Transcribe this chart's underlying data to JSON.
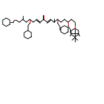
{
  "bg": "#ffffff",
  "lc": "#000000",
  "oc": "#dd0000",
  "lw": 0.7,
  "figsize": [
    1.5,
    1.5
  ],
  "dpi": 100
}
